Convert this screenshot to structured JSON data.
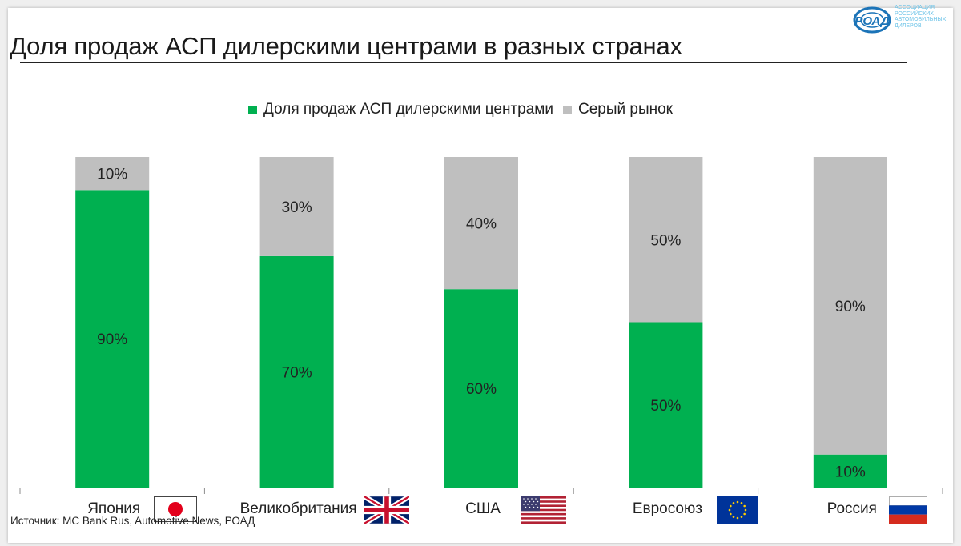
{
  "title": "Доля продаж АСП дилерскими центрами в разных странах",
  "logo": {
    "name": "РОАД",
    "subtitle": "АССОЦИАЦИЯ\nРОССИЙСКИХ\nАВТОМОБИЛЬНЫХ\nДИЛЕРОВ"
  },
  "source": "Источник: МС Bank Rus, Automotive News, РОАД",
  "colors": {
    "green": "#00b050",
    "gray": "#bfbfbf",
    "logo_blue": "#1c74b8"
  },
  "chart_data": {
    "type": "bar",
    "stacked": true,
    "categories": [
      "Япония",
      "Великобритания",
      "США",
      "Евросоюз",
      "Россия"
    ],
    "series": [
      {
        "name": "Доля продаж АСП дилерскими центрами",
        "values": [
          90,
          70,
          60,
          50,
          10
        ],
        "labels": [
          "90%",
          "70%",
          "60%",
          "50%",
          "10%"
        ],
        "color": "#00b050"
      },
      {
        "name": "Серый рынок",
        "values": [
          10,
          30,
          40,
          50,
          90
        ],
        "labels": [
          "10%",
          "30%",
          "40%",
          "50%",
          "90%"
        ],
        "color": "#bfbfbf"
      }
    ],
    "ylim": [
      0,
      100
    ],
    "legend": "top",
    "flags": [
      "japan-flag-icon",
      "uk-flag-icon",
      "usa-flag-icon",
      "eu-flag-icon",
      "russia-flag-icon"
    ]
  }
}
